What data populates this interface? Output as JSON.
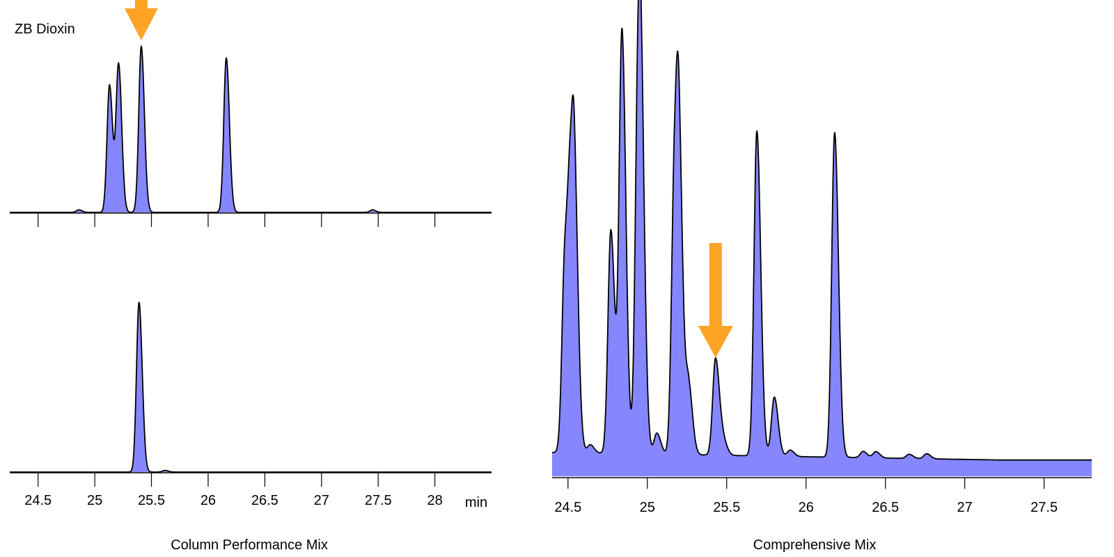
{
  "colors": {
    "fill": "#8686ff",
    "line": "#000000",
    "arrow": "#ffa325"
  },
  "icons": {
    "arrow": "arrow-down-icon"
  },
  "chart_data": [
    {
      "type": "area",
      "title": "",
      "label": "ZB Dioxin",
      "x_axis_title": "Column Performance Mix",
      "xlim": [
        24.25,
        28.5
      ],
      "ylim": [
        0,
        1.0
      ],
      "x_ticks": [
        24.5,
        25,
        25.5,
        26,
        26.5,
        27,
        27.5,
        28
      ],
      "x_unit": "min",
      "ticks_on_top_panel": true,
      "series": [
        {
          "peaks": [
            {
              "rt": 24.86,
              "height": 0.015
            },
            {
              "rt": 25.13,
              "height": 0.76
            },
            {
              "rt": 25.21,
              "height": 0.88
            },
            {
              "rt": 25.41,
              "height": 0.99,
              "marked": true
            },
            {
              "rt": 26.16,
              "height": 0.92
            },
            {
              "rt": 27.45,
              "height": 0.015
            }
          ]
        },
        {
          "peaks": [
            {
              "rt": 25.39,
              "height": 1.0
            },
            {
              "rt": 25.62,
              "height": 0.01
            }
          ]
        }
      ]
    },
    {
      "type": "area",
      "title": "",
      "x_axis_title": "Comprehensive Mix",
      "xlim": [
        24.4,
        27.8
      ],
      "ylim": [
        0,
        1.0
      ],
      "x_ticks": [
        24.5,
        25,
        25.5,
        26,
        26.5,
        27,
        27.5
      ],
      "series": [
        {
          "peaks": [
            {
              "rt": 24.48,
              "height": 0.45
            },
            {
              "rt": 24.515,
              "height": 0.4
            },
            {
              "rt": 24.54,
              "height": 0.54
            },
            {
              "rt": 24.64,
              "height": 0.02
            },
            {
              "rt": 24.77,
              "height": 0.53
            },
            {
              "rt": 24.84,
              "height": 1.0
            },
            {
              "rt": 24.94,
              "height": 0.71
            },
            {
              "rt": 24.96,
              "height": 0.58
            },
            {
              "rt": 25.06,
              "height": 0.05
            },
            {
              "rt": 25.17,
              "height": 0.62
            },
            {
              "rt": 25.2,
              "height": 0.6
            },
            {
              "rt": 25.26,
              "height": 0.16
            },
            {
              "rt": 25.43,
              "height": 0.23,
              "marked": true
            },
            {
              "rt": 25.48,
              "height": 0.03
            },
            {
              "rt": 25.69,
              "height": 0.77
            },
            {
              "rt": 25.8,
              "height": 0.14
            },
            {
              "rt": 25.9,
              "height": 0.015
            },
            {
              "rt": 26.18,
              "height": 0.77
            },
            {
              "rt": 26.36,
              "height": 0.015
            },
            {
              "rt": 26.44,
              "height": 0.015
            },
            {
              "rt": 26.65,
              "height": 0.01
            },
            {
              "rt": 26.76,
              "height": 0.012
            }
          ]
        }
      ]
    }
  ]
}
